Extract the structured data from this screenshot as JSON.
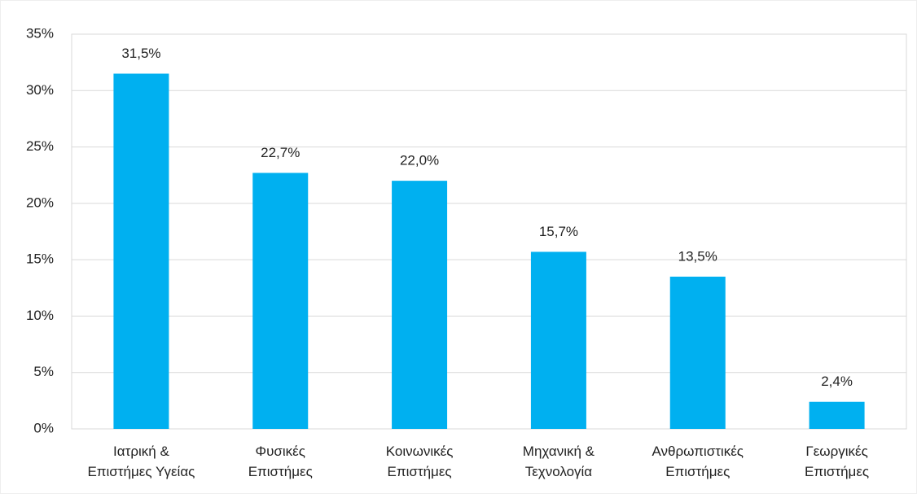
{
  "chart_data": {
    "type": "bar",
    "categories": [
      [
        "Ιατρική &",
        "Επιστήμες Υγείας"
      ],
      [
        "Φυσικές",
        "Επιστήμες"
      ],
      [
        "Κοινωνικές",
        "Επιστήμες"
      ],
      [
        "Μηχανική &",
        "Τεχνολογία"
      ],
      [
        "Ανθρωπιστικές",
        "Επιστήμες"
      ],
      [
        "Γεωργικές",
        "Επιστήμες"
      ]
    ],
    "values": [
      31.5,
      22.7,
      22.0,
      15.7,
      13.5,
      2.4
    ],
    "value_labels": [
      "31,5%",
      "22,7%",
      "22,0%",
      "15,7%",
      "13,5%",
      "2,4%"
    ],
    "color": "#00b0f0",
    "ylim": [
      0,
      35
    ],
    "yticks": [
      {
        "value": 0,
        "label": "0%"
      },
      {
        "value": 5,
        "label": "5%"
      },
      {
        "value": 10,
        "label": "10%"
      },
      {
        "value": 15,
        "label": "15%"
      },
      {
        "value": 20,
        "label": "20%"
      },
      {
        "value": 25,
        "label": "25%"
      },
      {
        "value": 30,
        "label": "30%"
      },
      {
        "value": 35,
        "label": "35%"
      }
    ],
    "grid": true
  }
}
